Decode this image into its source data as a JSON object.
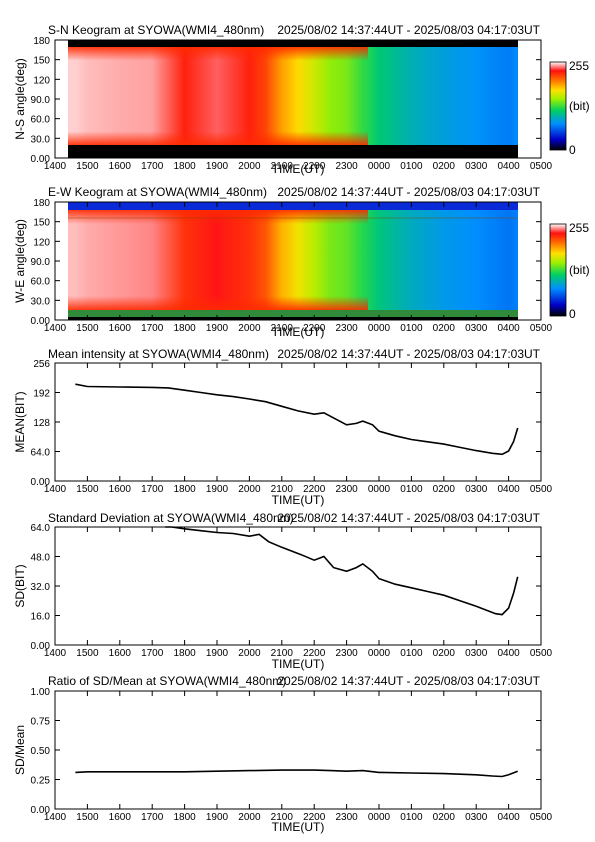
{
  "x_axis": {
    "ticks": [
      "1400",
      "1500",
      "1600",
      "1700",
      "1800",
      "1900",
      "2000",
      "2100",
      "2200",
      "2300",
      "0000",
      "0100",
      "0200",
      "0300",
      "0400",
      "0500"
    ],
    "label": "TIME(UT)",
    "range_hours": [
      14,
      29
    ]
  },
  "time_span": "2025/08/02 14:37:44UT - 2025/08/03 04:17:03UT",
  "colorbar": {
    "max_label": "255",
    "unit_label": "(bit)",
    "min_label": "0"
  },
  "panels": [
    {
      "id": "sn",
      "type": "keogram",
      "title": "S-N Keogram at SYOWA(WMI4_480nm)",
      "ylabel": "N-S angle(deg)",
      "yticks": [
        "180",
        "150",
        "120",
        "90.0",
        "60.0",
        "30.0",
        "0.00"
      ],
      "ylim": [
        0,
        180
      ]
    },
    {
      "id": "ew",
      "type": "keogram",
      "title": "E-W Keogram at SYOWA(WMI4_480nm)",
      "ylabel": "W-E angle(deg)",
      "yticks": [
        "180",
        "150",
        "120",
        "90.0",
        "60.0",
        "30.0",
        "0.00"
      ],
      "ylim": [
        0,
        180
      ]
    },
    {
      "id": "mean",
      "type": "line",
      "title": "Mean intensity at SYOWA(WMI4_480nm)",
      "ylabel": "MEAN(BIT)",
      "yticks": [
        "256",
        "192",
        "128",
        "64.0",
        "0.00"
      ],
      "ylim": [
        0,
        256
      ]
    },
    {
      "id": "sd",
      "type": "line",
      "title": "Standard Deviation at SYOWA(WMI4_480nm)",
      "ylabel": "SD(BIT)",
      "yticks": [
        "64.0",
        "48.0",
        "32.0",
        "16.0",
        "0.00"
      ],
      "ylim": [
        0,
        64
      ]
    },
    {
      "id": "ratio",
      "type": "line",
      "title": "Ratio of SD/Mean at SYOWA(WMI4_480nm)",
      "ylabel": "SD/Mean",
      "yticks": [
        "1.00",
        "0.75",
        "0.50",
        "0.25",
        "0.00"
      ],
      "ylim": [
        0,
        1
      ]
    }
  ],
  "chart_data": [
    {
      "type": "heatmap",
      "title": "S-N Keogram at SYOWA(WMI4_480nm)",
      "xlabel": "TIME(UT)",
      "ylabel": "N-S angle(deg)",
      "ylim": [
        0,
        180
      ],
      "x": [
        14.63,
        15.0,
        16.0,
        17.0,
        18.0,
        19.0,
        20.0,
        20.5,
        21.0,
        21.5,
        22.0,
        22.5,
        23.0,
        23.5,
        24.0,
        25.0,
        26.0,
        27.0,
        28.0,
        28.28
      ],
      "value": [
        250,
        248,
        246,
        245,
        225,
        238,
        225,
        215,
        190,
        175,
        160,
        145,
        140,
        125,
        110,
        95,
        85,
        78,
        70,
        75
      ]
    },
    {
      "type": "heatmap",
      "title": "E-W Keogram at SYOWA(WMI4_480nm)",
      "xlabel": "TIME(UT)",
      "ylabel": "W-E angle(deg)",
      "ylim": [
        0,
        180
      ],
      "x": [
        14.63,
        15.0,
        16.0,
        17.0,
        18.0,
        19.0,
        20.0,
        20.5,
        21.0,
        21.5,
        22.0,
        22.5,
        23.0,
        23.5,
        24.0,
        25.0,
        26.0,
        27.0,
        28.0,
        28.28
      ],
      "value": [
        248,
        246,
        244,
        242,
        220,
        230,
        220,
        210,
        185,
        170,
        155,
        140,
        135,
        122,
        108,
        92,
        82,
        76,
        68,
        72
      ]
    },
    {
      "type": "line",
      "title": "Mean intensity at SYOWA(WMI4_480nm)",
      "xlabel": "TIME(UT)",
      "ylabel": "MEAN(BIT)",
      "ylim": [
        0,
        256
      ],
      "x": [
        14.63,
        15.0,
        16.0,
        17.0,
        17.5,
        18.0,
        18.5,
        19.0,
        19.5,
        20.0,
        20.5,
        21.0,
        21.5,
        22.0,
        22.3,
        22.6,
        23.0,
        23.3,
        23.5,
        23.8,
        24.0,
        24.5,
        25.0,
        25.5,
        26.0,
        26.5,
        27.0,
        27.5,
        27.8,
        28.0,
        28.15,
        28.28
      ],
      "y": [
        210,
        205,
        204,
        203,
        202,
        197,
        192,
        187,
        183,
        178,
        172,
        162,
        152,
        145,
        148,
        137,
        122,
        125,
        130,
        122,
        108,
        98,
        90,
        85,
        80,
        73,
        66,
        60,
        58,
        65,
        85,
        115
      ]
    },
    {
      "type": "line",
      "title": "Standard Deviation at SYOWA(WMI4_480nm)",
      "xlabel": "TIME(UT)",
      "ylabel": "SD(BIT)",
      "ylim": [
        0,
        64
      ],
      "x": [
        17.4,
        17.6,
        18.0,
        18.5,
        19.0,
        19.5,
        20.0,
        20.3,
        20.6,
        21.0,
        21.3,
        21.6,
        22.0,
        22.3,
        22.6,
        23.0,
        23.3,
        23.5,
        23.8,
        24.0,
        24.5,
        25.0,
        25.5,
        26.0,
        26.5,
        27.0,
        27.3,
        27.6,
        27.8,
        28.0,
        28.15,
        28.28
      ],
      "y": [
        64,
        64,
        63,
        62,
        61,
        60.5,
        59,
        60,
        56,
        53,
        51,
        49,
        46,
        48,
        42,
        40,
        42,
        44,
        40,
        36,
        33,
        31,
        29,
        27,
        24,
        21,
        19,
        17,
        16.5,
        20,
        28,
        37
      ]
    },
    {
      "type": "line",
      "title": "Ratio of SD/Mean at SYOWA(WMI4_480nm)",
      "xlabel": "TIME(UT)",
      "ylabel": "SD/Mean",
      "ylim": [
        0,
        1
      ],
      "x": [
        14.63,
        15.0,
        16.0,
        17.0,
        18.0,
        19.0,
        20.0,
        21.0,
        22.0,
        22.5,
        23.0,
        23.5,
        24.0,
        25.0,
        26.0,
        27.0,
        27.5,
        27.8,
        28.0,
        28.28
      ],
      "y": [
        0.31,
        0.315,
        0.315,
        0.315,
        0.315,
        0.32,
        0.325,
        0.33,
        0.33,
        0.325,
        0.32,
        0.325,
        0.31,
        0.305,
        0.3,
        0.29,
        0.28,
        0.275,
        0.29,
        0.32
      ]
    }
  ]
}
